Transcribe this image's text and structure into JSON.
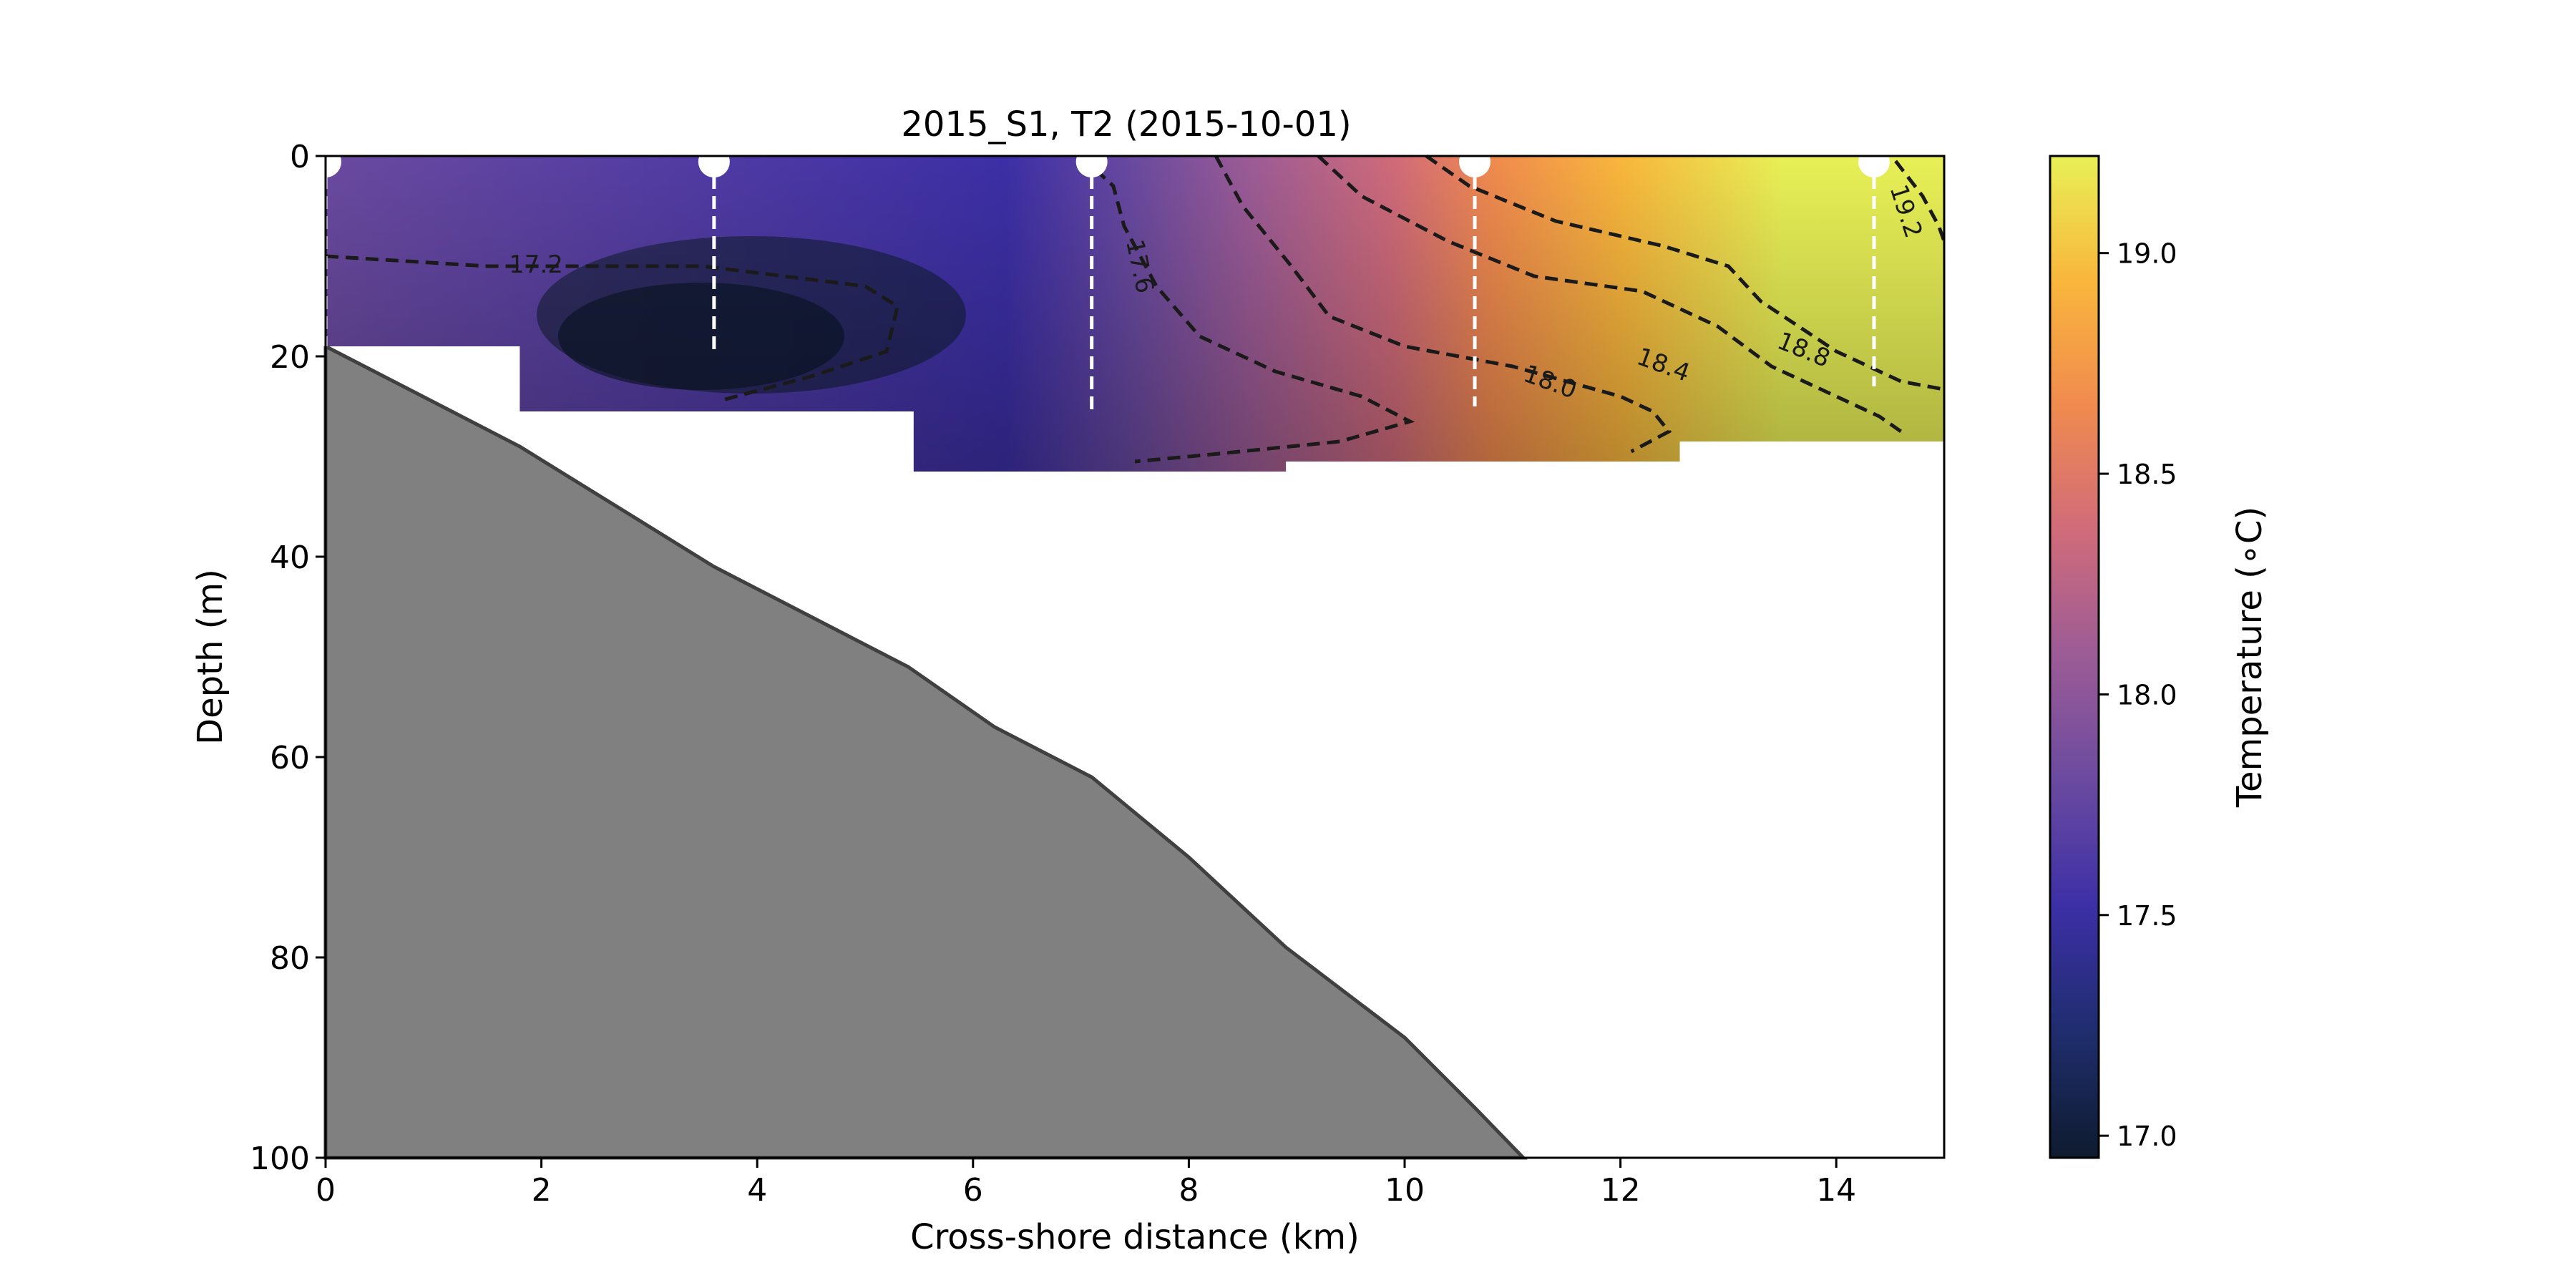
{
  "chart_data": {
    "type": "heatmap",
    "title": "2015_S1, T2 (2015-10-01)",
    "xlabel": "Cross-shore distance (km)",
    "ylabel": "Depth (m)",
    "xlim": [
      0,
      15
    ],
    "ylim": [
      100,
      0
    ],
    "x_ticks": [
      "0",
      "2",
      "4",
      "6",
      "8",
      "10",
      "12",
      "14"
    ],
    "y_ticks": [
      "0",
      "20",
      "40",
      "60",
      "80",
      "100"
    ],
    "colorbar": {
      "label": "Temperature (∘C)",
      "range": [
        16.95,
        19.22
      ],
      "ticks": [
        "17.0",
        "17.5",
        "18.0",
        "18.5",
        "19.0"
      ],
      "colormap": [
        "#0e1b2e",
        "#1f2d6e",
        "#3c2fa6",
        "#6a4aa0",
        "#9b5b96",
        "#d06b7a",
        "#f08a4f",
        "#f9b63c",
        "#e8f056"
      ]
    },
    "stations": [
      {
        "x": 0.0,
        "cast_depth": 19
      },
      {
        "x": 3.6,
        "cast_depth": 20
      },
      {
        "x": 7.1,
        "cast_depth": 26
      },
      {
        "x": 10.65,
        "cast_depth": 25
      },
      {
        "x": 14.35,
        "cast_depth": 23
      }
    ],
    "data_columns": [
      {
        "x_range": [
          0,
          1.8
        ],
        "max_depth": 19
      },
      {
        "x_range": [
          1.8,
          5.45
        ],
        "max_depth": 25.5
      },
      {
        "x_range": [
          5.45,
          8.9
        ],
        "max_depth": 31.5
      },
      {
        "x_range": [
          8.9,
          12.55
        ],
        "max_depth": 30.5
      },
      {
        "x_range": [
          12.55,
          15
        ],
        "max_depth": 28.5
      }
    ],
    "bathymetry": {
      "x": [
        0,
        1.8,
        3.6,
        5.4,
        6.2,
        7.1,
        8.0,
        8.9,
        10.0,
        10.65,
        11.1
      ],
      "depth": [
        19,
        29,
        41,
        51,
        57,
        62,
        70,
        79,
        88,
        95,
        100
      ]
    },
    "contours": [
      {
        "level": "17.2",
        "x": [
          0,
          1.5,
          3.5,
          5.0,
          5.3,
          5.2,
          4.5,
          3.7
        ],
        "depth": [
          10,
          11,
          11,
          13,
          15,
          19.5,
          22,
          24.3
        ]
      },
      {
        "level": "17.6",
        "x": [
          7.0,
          7.3,
          7.4,
          7.7,
          8.1,
          8.8,
          9.6,
          10.05,
          9.4,
          8.2,
          7.5
        ],
        "depth": [
          0,
          3,
          7,
          13,
          18,
          21.5,
          24,
          26.5,
          28.5,
          29.8,
          30.5
        ]
      },
      {
        "level": "18.0",
        "x": [
          8.25,
          8.5,
          8.95,
          9.3,
          10.0,
          11.0,
          12.0,
          12.3,
          12.45,
          12.1
        ],
        "depth": [
          0,
          5,
          11,
          16,
          19,
          21,
          24,
          25.5,
          27.5,
          29.5
        ]
      },
      {
        "level": "18.4",
        "x": [
          9.2,
          9.6,
          10.4,
          11.2,
          12.2,
          12.9,
          13.4,
          14.0,
          14.4,
          14.6
        ],
        "depth": [
          0,
          4,
          8.5,
          12,
          13.5,
          17,
          21,
          24,
          26,
          27.5
        ]
      },
      {
        "level": "18.8",
        "x": [
          10.2,
          10.6,
          11.4,
          12.4,
          13.0,
          13.3,
          14.0,
          14.6,
          15.0
        ],
        "depth": [
          0,
          3,
          6.5,
          9,
          11,
          14.5,
          19.5,
          22.5,
          23.3
        ]
      },
      {
        "level": "19.2",
        "x": [
          14.55,
          14.8,
          14.95,
          15.0
        ],
        "depth": [
          0.5,
          4,
          7,
          8.5
        ]
      }
    ],
    "grid": false,
    "legend": "none"
  }
}
